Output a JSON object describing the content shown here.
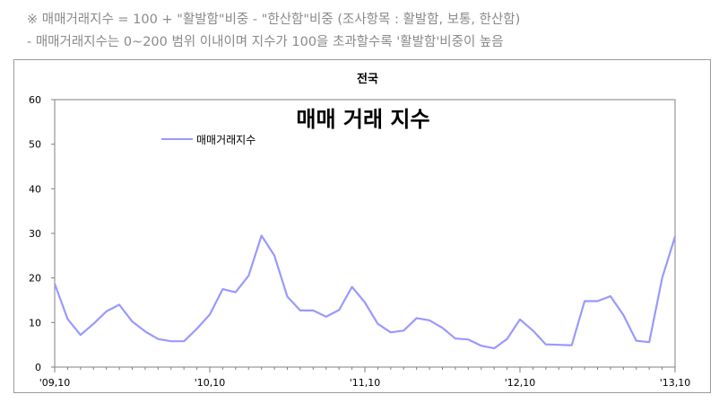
{
  "notes": {
    "line1": "※ 매매거래지수 = 100 + \"활발함\"비중 - \"한산함\"비중 (조사항목 : 활발함, 보통, 한산함)",
    "line2": "- 매매거래지수는 0~200 범위 이내이며 지수가 100을 초과할수록 '활발함'비중이 높음"
  },
  "chart_data": {
    "type": "line",
    "title": "전국",
    "subtitle": "매매 거래 지수",
    "xlabel": "",
    "ylabel": "",
    "ylim": [
      0,
      60
    ],
    "yticks": [
      0,
      10,
      20,
      30,
      40,
      50,
      60
    ],
    "xtick_labels": [
      "'09,10",
      "'10,10",
      "'11,10",
      "'12,10",
      "'13,10"
    ],
    "grid": false,
    "legend": "top-left inside plot",
    "series": [
      {
        "name": "매매거래지수",
        "color": "#9999ff",
        "values": [
          18.7,
          10.8,
          7.2,
          9.7,
          12.5,
          14.0,
          10.2,
          8.0,
          6.3,
          5.8,
          5.8,
          8.6,
          11.8,
          17.5,
          16.8,
          20.5,
          29.5,
          25.0,
          15.8,
          12.7,
          12.7,
          11.3,
          12.8,
          18.0,
          14.5,
          9.7,
          7.8,
          8.2,
          11.0,
          10.5,
          8.8,
          6.4,
          6.2,
          4.8,
          4.2,
          6.3,
          10.7,
          8.2,
          5.1,
          5.0,
          4.9,
          14.8,
          14.8,
          15.9,
          11.7,
          5.9,
          5.6,
          20.0,
          29.3
        ]
      }
    ]
  }
}
